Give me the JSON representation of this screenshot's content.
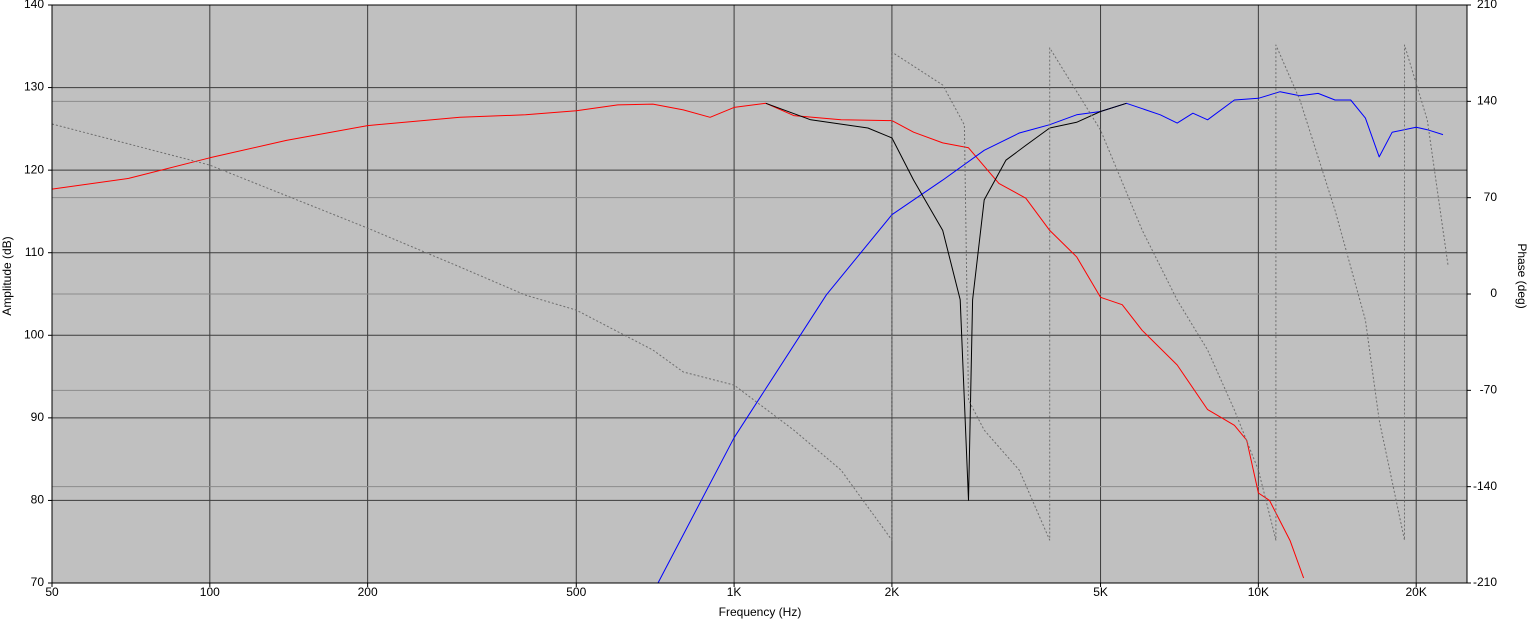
{
  "chart_data": {
    "type": "line",
    "x_label": "Frequency (Hz)",
    "y_label": "Amplitude (dB)",
    "y2_label": "Phase (deg)",
    "xscale": "log",
    "xlim": [
      50,
      25000
    ],
    "xticks": [
      50,
      100,
      200,
      500,
      {
        "value": 1000,
        "label": "1K"
      },
      {
        "value": 2000,
        "label": "2K"
      },
      {
        "value": 5000,
        "label": "5K"
      },
      {
        "value": 10000,
        "label": "10K"
      },
      {
        "value": 20000,
        "label": "20K"
      }
    ],
    "ylim": [
      70,
      140
    ],
    "yticks": [
      70,
      80,
      90,
      100,
      110,
      120,
      130,
      140
    ],
    "y2lim": [
      -210,
      210
    ],
    "y2ticks": [
      -210,
      -140,
      -70,
      0,
      70,
      140,
      210
    ],
    "grid": true,
    "background": "#c0c0c0",
    "series": [
      {
        "color": "#ff0000",
        "x": [
          50,
          70,
          100,
          140,
          200,
          300,
          400,
          500,
          600,
          700,
          800,
          900,
          1000,
          1150,
          1300,
          1600,
          2000,
          2200,
          2500,
          2800,
          3200,
          3600,
          4000,
          4500,
          5000,
          5500,
          6000,
          7000,
          8000,
          9000,
          9500,
          10000,
          10500,
          11500,
          12200
        ],
        "values": [
          117.7,
          119.0,
          121.5,
          123.6,
          125.4,
          126.4,
          126.7,
          127.2,
          127.9,
          128.0,
          127.3,
          126.4,
          127.6,
          128.1,
          126.6,
          126.1,
          126.0,
          124.6,
          123.3,
          122.7,
          118.4,
          116.6,
          112.7,
          109.5,
          104.6,
          103.7,
          100.6,
          96.4,
          91.0,
          89.1,
          87.3,
          80.9,
          80.0,
          75.1,
          70.6
        ]
      },
      {
        "color": "#0000ff",
        "x": [
          716,
          1000,
          1500,
          2000,
          2500,
          3000,
          3500,
          4000,
          4500,
          5000,
          5600,
          6500,
          7000,
          7500,
          8000,
          9000,
          10000,
          11000,
          12000,
          13000,
          14000,
          15000,
          16000,
          17000,
          18000,
          20000,
          21000,
          22500
        ],
        "values": [
          70.0,
          87.6,
          104.9,
          114.6,
          118.8,
          122.4,
          124.5,
          125.5,
          126.7,
          127.1,
          128.1,
          126.7,
          125.7,
          126.9,
          126.1,
          128.5,
          128.7,
          129.5,
          129.0,
          129.3,
          128.5,
          128.5,
          126.3,
          121.6,
          124.6,
          125.2,
          124.9,
          124.3
        ]
      },
      {
        "color": "#000000",
        "x": [
          1150,
          1400,
          1800,
          2000,
          2200,
          2500,
          2700,
          2800,
          2850,
          3000,
          3300,
          3600,
          4000,
          4500,
          5000,
          5600
        ],
        "values": [
          128.1,
          126.1,
          125.1,
          123.9,
          118.8,
          112.7,
          104.3,
          80.0,
          104.3,
          116.4,
          121.2,
          123.0,
          125.1,
          125.8,
          127.1,
          128.1
        ]
      },
      {
        "color": "#6e6e6e",
        "axis": "y2",
        "style": "dashed",
        "x": [
          50,
          100,
          200,
          300,
          400,
          500,
          700,
          800,
          1000,
          1300,
          1600,
          2000,
          2000,
          2500,
          2750,
          2800,
          3000,
          3500,
          4000,
          4000,
          5000,
          6000,
          7000,
          8000,
          9000,
          10000,
          10800,
          10800,
          12000,
          14000,
          16000,
          17000,
          19000,
          19000,
          21000,
          23000
        ],
        "values": [
          123.5,
          93.7,
          47.9,
          19.6,
          -0.8,
          -11.7,
          -40.7,
          -56.7,
          -66.2,
          -98.9,
          -128,
          -178.8,
          175.8,
          151.9,
          122.8,
          -77,
          -98.9,
          -128,
          -178.8,
          178.8,
          119.2,
          46.5,
          -4.4,
          -40.7,
          -84.3,
          -128,
          -178.8,
          180.9,
          141,
          61,
          -19,
          -91.6,
          -178.8,
          180.9,
          126.4,
          21
        ]
      }
    ]
  }
}
